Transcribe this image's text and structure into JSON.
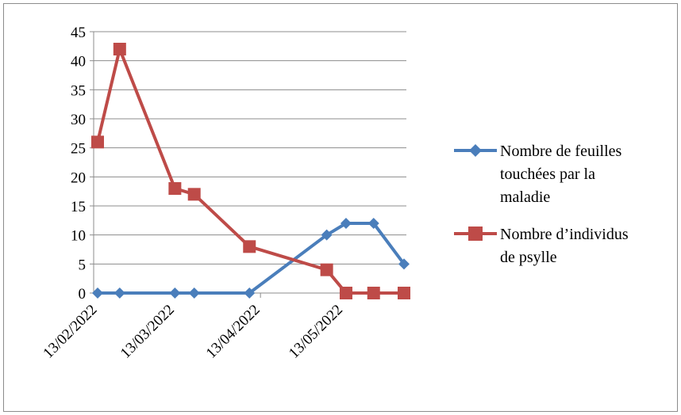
{
  "chart_data": {
    "type": "line",
    "title": "",
    "xlabel": "",
    "ylabel": "",
    "ylim": [
      0,
      45
    ],
    "y_ticks": [
      0,
      5,
      10,
      15,
      20,
      25,
      30,
      35,
      40,
      45
    ],
    "x_range": [
      "2022-02-13",
      "2022-06-04"
    ],
    "x_ticks": [
      "2022-02-13",
      "2022-03-13",
      "2022-04-13",
      "2022-05-13"
    ],
    "x_tick_labels": [
      "13/02/2022",
      "13/03/2022",
      "13/04/2022",
      "13/05/2022"
    ],
    "grid": true,
    "legend_position": "right",
    "x": [
      "2022-02-13",
      "2022-02-21",
      "2022-03-13",
      "2022-03-20",
      "2022-04-09",
      "2022-05-07",
      "2022-05-14",
      "2022-05-24",
      "2022-06-04"
    ],
    "series": [
      {
        "name": "Nombre de feuilles touchées par la maladie",
        "legend_lines": [
          "Nombre de feuilles",
          "touchées par la",
          "maladie"
        ],
        "color": "#4a7ebb",
        "marker": "diamond",
        "x": [
          "2022-02-13",
          "2022-02-21",
          "2022-03-13",
          "2022-03-20",
          "2022-04-09",
          "2022-05-07",
          "2022-05-14",
          "2022-05-24",
          "2022-06-04"
        ],
        "values": [
          0,
          0,
          0,
          0,
          0,
          10,
          12,
          12,
          5
        ]
      },
      {
        "name": "Nombre d’individus de psylle",
        "legend_lines": [
          "Nombre d’individus",
          "de psylle"
        ],
        "color": "#be4b48",
        "marker": "square",
        "x": [
          "2022-02-13",
          "2022-02-21",
          "2022-03-13",
          "2022-03-20",
          "2022-04-09",
          "2022-05-07",
          "2022-05-14",
          "2022-05-24",
          "2022-06-04"
        ],
        "values": [
          26,
          42,
          18,
          17,
          8,
          4,
          0,
          0,
          0
        ]
      }
    ]
  }
}
